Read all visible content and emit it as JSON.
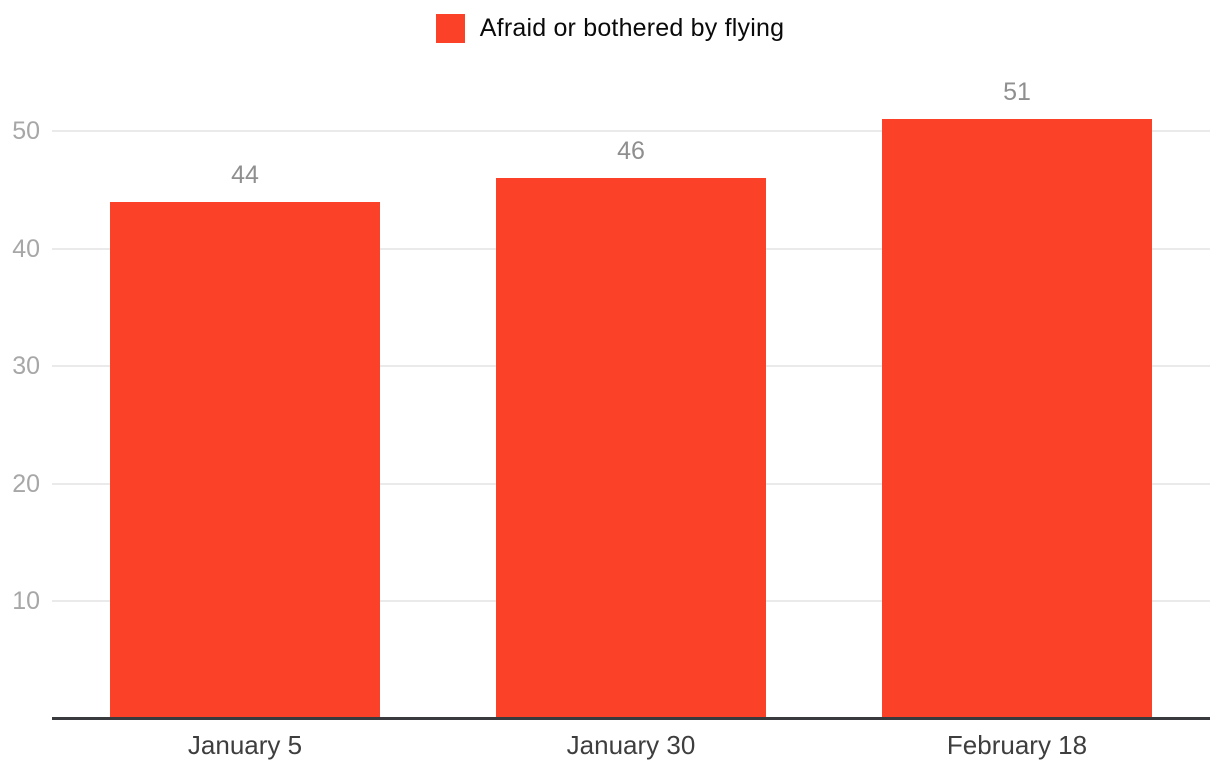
{
  "chart_data": {
    "type": "bar",
    "title": "",
    "legend": [
      {
        "label": "Afraid or bothered by flying",
        "color": "#FC4129"
      }
    ],
    "legend_position": "top",
    "categories": [
      "January 5",
      "January 30",
      "February 18"
    ],
    "series": [
      {
        "name": "Afraid or bothered by flying",
        "values": [
          44,
          46,
          51
        ]
      }
    ],
    "values": [
      44,
      46,
      51
    ],
    "value_labels": [
      "44",
      "46",
      "51"
    ],
    "yticks": [
      10,
      20,
      30,
      40,
      50
    ],
    "ylim": [
      0,
      55
    ],
    "grid": true,
    "bar_color": "#FC4129",
    "gridline_color": "#eaeaea",
    "axis_line_color": "#393a3e",
    "ytick_color": "#a7a7a7",
    "value_label_color": "#8f8f8f",
    "xtick_color": "#3e3e3e"
  }
}
